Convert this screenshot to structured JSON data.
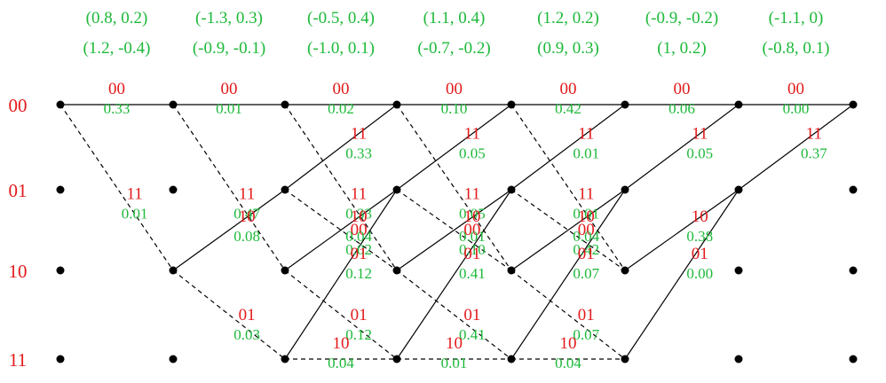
{
  "observations": [
    {
      "top": "(0.8, 0.2)",
      "bottom": "(1.2, -0.4)"
    },
    {
      "top": "(-1.3, 0.3)",
      "bottom": "(-0.9, -0.1)"
    },
    {
      "top": "(-0.5, 0.4)",
      "bottom": "(-1.0, 0.1)"
    },
    {
      "top": "(1.1, 0.4)",
      "bottom": "(-0.7, -0.2)"
    },
    {
      "top": "(1.2, 0.2)",
      "bottom": "(0.9, 0.3)"
    },
    {
      "top": "(-0.9, -0.2)",
      "bottom": "(1, 0.2)"
    },
    {
      "top": "(-1.1, 0)",
      "bottom": "(-0.8, 0.1)"
    }
  ],
  "states": [
    "00",
    "01",
    "10",
    "11"
  ],
  "edges": [
    {
      "t": 0,
      "from": 0,
      "to": 0,
      "style": "solid",
      "out": "00",
      "metric": "0.33"
    },
    {
      "t": 0,
      "from": 0,
      "to": 2,
      "style": "dashed",
      "out": "11",
      "metric": "0.01"
    },
    {
      "t": 1,
      "from": 0,
      "to": 0,
      "style": "solid",
      "out": "00",
      "metric": "0.01"
    },
    {
      "t": 1,
      "from": 0,
      "to": 2,
      "style": "dashed",
      "out": "11",
      "metric": "0.47"
    },
    {
      "t": 1,
      "from": 2,
      "to": 1,
      "style": "solid",
      "out": "10",
      "metric": "0.08"
    },
    {
      "t": 1,
      "from": 2,
      "to": 3,
      "style": "dashed",
      "out": "01",
      "metric": "0.03"
    },
    {
      "t": 2,
      "from": 0,
      "to": 0,
      "style": "solid",
      "out": "00",
      "metric": "0.02"
    },
    {
      "t": 2,
      "from": 0,
      "to": 2,
      "style": "dashed",
      "out": "11",
      "metric": "0.33"
    },
    {
      "t": 2,
      "from": 1,
      "to": 0,
      "style": "solid",
      "out": "11",
      "metric": "0.33"
    },
    {
      "t": 2,
      "from": 1,
      "to": 2,
      "style": "dashed",
      "out": "00",
      "metric": "0.02"
    },
    {
      "t": 2,
      "from": 2,
      "to": 1,
      "style": "solid",
      "out": "10",
      "metric": "0.04"
    },
    {
      "t": 2,
      "from": 2,
      "to": 3,
      "style": "dashed",
      "out": "01",
      "metric": "0.12"
    },
    {
      "t": 2,
      "from": 3,
      "to": 1,
      "style": "solid",
      "out": "01",
      "metric": "0.12"
    },
    {
      "t": 2,
      "from": 3,
      "to": 3,
      "style": "dashed",
      "out": "10",
      "metric": "0.04"
    },
    {
      "t": 3,
      "from": 0,
      "to": 0,
      "style": "solid",
      "out": "00",
      "metric": "0.10"
    },
    {
      "t": 3,
      "from": 0,
      "to": 2,
      "style": "dashed",
      "out": "11",
      "metric": "0.05"
    },
    {
      "t": 3,
      "from": 1,
      "to": 0,
      "style": "solid",
      "out": "11",
      "metric": "0.05"
    },
    {
      "t": 3,
      "from": 1,
      "to": 2,
      "style": "dashed",
      "out": "00",
      "metric": "0.10"
    },
    {
      "t": 3,
      "from": 2,
      "to": 1,
      "style": "solid",
      "out": "10",
      "metric": "0.01"
    },
    {
      "t": 3,
      "from": 2,
      "to": 3,
      "style": "dashed",
      "out": "01",
      "metric": "0.41"
    },
    {
      "t": 3,
      "from": 3,
      "to": 1,
      "style": "solid",
      "out": "01",
      "metric": "0.41"
    },
    {
      "t": 3,
      "from": 3,
      "to": 3,
      "style": "dashed",
      "out": "10",
      "metric": "0.01"
    },
    {
      "t": 4,
      "from": 0,
      "to": 0,
      "style": "solid",
      "out": "00",
      "metric": "0.42"
    },
    {
      "t": 4,
      "from": 0,
      "to": 2,
      "style": "dashed",
      "out": "11",
      "metric": "0.01"
    },
    {
      "t": 4,
      "from": 1,
      "to": 0,
      "style": "solid",
      "out": "11",
      "metric": "0.01"
    },
    {
      "t": 4,
      "from": 1,
      "to": 2,
      "style": "dashed",
      "out": "00",
      "metric": "0.42"
    },
    {
      "t": 4,
      "from": 2,
      "to": 1,
      "style": "solid",
      "out": "10",
      "metric": "0.04"
    },
    {
      "t": 4,
      "from": 2,
      "to": 3,
      "style": "dashed",
      "out": "01",
      "metric": "0.07"
    },
    {
      "t": 4,
      "from": 3,
      "to": 1,
      "style": "solid",
      "out": "01",
      "metric": "0.07"
    },
    {
      "t": 4,
      "from": 3,
      "to": 3,
      "style": "dashed",
      "out": "10",
      "metric": "0.04"
    },
    {
      "t": 5,
      "from": 0,
      "to": 0,
      "style": "solid",
      "out": "00",
      "metric": "0.06"
    },
    {
      "t": 5,
      "from": 1,
      "to": 0,
      "style": "solid",
      "out": "11",
      "metric": "0.05"
    },
    {
      "t": 5,
      "from": 2,
      "to": 1,
      "style": "solid",
      "out": "10",
      "metric": "0.38"
    },
    {
      "t": 5,
      "from": 3,
      "to": 1,
      "style": "solid",
      "out": "01",
      "metric": "0.00"
    },
    {
      "t": 6,
      "from": 0,
      "to": 0,
      "style": "solid",
      "out": "00",
      "metric": "0.00"
    },
    {
      "t": 6,
      "from": 1,
      "to": 0,
      "style": "solid",
      "out": "11",
      "metric": "0.37"
    }
  ]
}
